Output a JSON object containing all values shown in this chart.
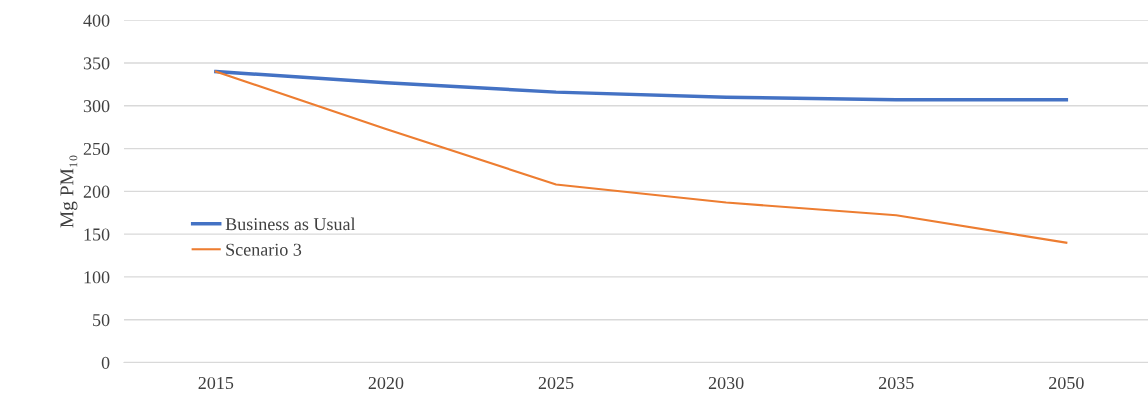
{
  "chart_data": {
    "type": "line",
    "ylabel": "Mg PM₁₀",
    "categories": [
      "2015",
      "2020",
      "2025",
      "2030",
      "2035",
      "2050"
    ],
    "series": [
      {
        "name": "Business as Usual",
        "color": "#4472c4",
        "values": [
          340,
          327,
          316,
          310,
          307,
          307
        ]
      },
      {
        "name": "Scenario 3",
        "color": "#ed7d31",
        "values": [
          340,
          273,
          208,
          187,
          172,
          140
        ]
      }
    ],
    "ylim": [
      0,
      400
    ],
    "yticks": [
      0,
      50,
      100,
      150,
      200,
      250,
      300,
      350,
      400
    ],
    "grid": "y",
    "legend": "left",
    "marker": "none",
    "line_style": "solid"
  }
}
